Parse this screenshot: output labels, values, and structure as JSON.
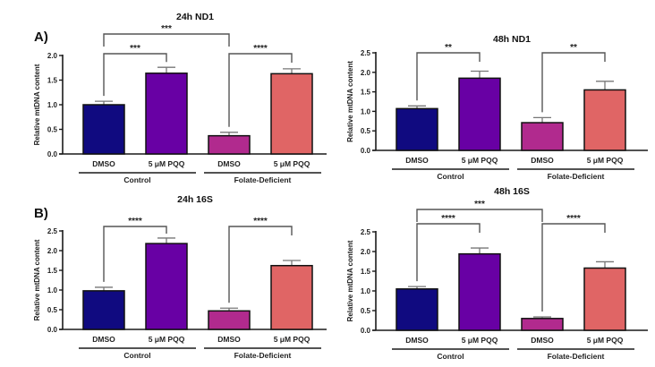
{
  "panels": [
    {
      "label": "A)"
    },
    {
      "label": "B)"
    }
  ],
  "colors": {
    "control_dmso": "#100a80",
    "control_pqq": "#6800a4",
    "fd_dmso": "#b12a8e",
    "fd_pqq": "#e06565",
    "axis": "#1a1a1a",
    "bracket": "#555555"
  },
  "chart_data": [
    {
      "type": "bar",
      "title": "24h ND1",
      "panel": "A)",
      "ylabel": "Relative mtDNA content",
      "xlabel": "",
      "ylim": [
        0,
        2.0
      ],
      "yticks": [
        "0.0",
        "0.5",
        "1.0",
        "1.5",
        "2.0"
      ],
      "categories": [
        "DMSO",
        "5 μM PQQ",
        "DMSO",
        "5 μM PQQ"
      ],
      "groups": [
        {
          "name": "Control",
          "categories": [
            0,
            1
          ]
        },
        {
          "name": "Folate-Deficient",
          "categories": [
            2,
            3
          ]
        }
      ],
      "values": [
        1.0,
        1.64,
        0.37,
        1.63
      ],
      "error_upper": [
        1.07,
        1.76,
        0.44,
        1.73
      ],
      "significance": [
        {
          "from": 0,
          "to": 1,
          "label": "***",
          "level": 1
        },
        {
          "from": 2,
          "to": 3,
          "label": "****",
          "level": 1
        },
        {
          "from": 0,
          "to": 2,
          "label": "***",
          "level": 2
        }
      ],
      "grid": false,
      "legend": "none"
    },
    {
      "type": "bar",
      "title": "48h ND1",
      "panel": "",
      "ylabel": "Relative mtDNA content",
      "xlabel": "",
      "ylim": [
        0,
        2.5
      ],
      "yticks": [
        "0.0",
        "0.5",
        "1.0",
        "1.5",
        "2.0",
        "2.5"
      ],
      "categories": [
        "DMSO",
        "5 μM PQQ",
        "DMSO",
        "5 μM PQQ"
      ],
      "groups": [
        {
          "name": "Control",
          "categories": [
            0,
            1
          ]
        },
        {
          "name": "Folate-Deficient",
          "categories": [
            2,
            3
          ]
        }
      ],
      "values": [
        1.07,
        1.85,
        0.71,
        1.55
      ],
      "error_upper": [
        1.14,
        2.03,
        0.84,
        1.77
      ],
      "significance": [
        {
          "from": 0,
          "to": 1,
          "label": "**",
          "level": 1
        },
        {
          "from": 2,
          "to": 3,
          "label": "**",
          "level": 1
        }
      ],
      "grid": false,
      "legend": "none"
    },
    {
      "type": "bar",
      "title": "24h 16S",
      "panel": "B)",
      "ylabel": "Relative mtDNA content",
      "xlabel": "",
      "ylim": [
        0,
        2.5
      ],
      "yticks": [
        "0.0",
        "0.5",
        "1.0",
        "1.5",
        "2.0",
        "2.5"
      ],
      "categories": [
        "DMSO",
        "5 μM PQQ",
        "DMSO",
        "5 μM PQQ"
      ],
      "groups": [
        {
          "name": "Control",
          "categories": [
            0,
            1
          ]
        },
        {
          "name": "Folate-Deficient",
          "categories": [
            2,
            3
          ]
        }
      ],
      "values": [
        0.98,
        2.18,
        0.47,
        1.62
      ],
      "error_upper": [
        1.07,
        2.32,
        0.54,
        1.75
      ],
      "significance": [
        {
          "from": 0,
          "to": 1,
          "label": "****",
          "level": 1
        },
        {
          "from": 2,
          "to": 3,
          "label": "****",
          "level": 1
        }
      ],
      "grid": false,
      "legend": "none"
    },
    {
      "type": "bar",
      "title": "48h 16S",
      "panel": "",
      "ylabel": "Relative mtDNA content",
      "xlabel": "",
      "ylim": [
        0,
        2.5
      ],
      "yticks": [
        "0.0",
        "0.5",
        "1.0",
        "1.5",
        "2.0",
        "2.5"
      ],
      "categories": [
        "DMSO",
        "5 μM PQQ",
        "DMSO",
        "5 μM PQQ"
      ],
      "groups": [
        {
          "name": "Control",
          "categories": [
            0,
            1
          ]
        },
        {
          "name": "Folate-Deficient",
          "categories": [
            2,
            3
          ]
        }
      ],
      "values": [
        1.05,
        1.94,
        0.3,
        1.58
      ],
      "error_upper": [
        1.11,
        2.09,
        0.34,
        1.74
      ],
      "significance": [
        {
          "from": 0,
          "to": 1,
          "label": "****",
          "level": 1
        },
        {
          "from": 2,
          "to": 3,
          "label": "****",
          "level": 1
        },
        {
          "from": 0,
          "to": 2,
          "label": "***",
          "level": 2
        }
      ],
      "grid": false,
      "legend": "none"
    }
  ]
}
